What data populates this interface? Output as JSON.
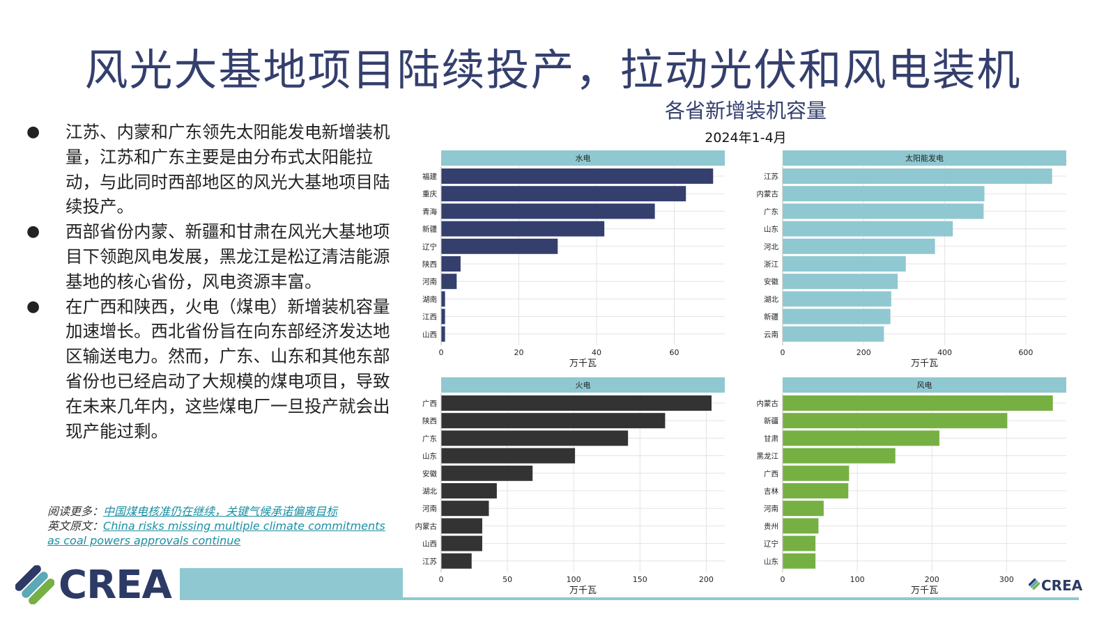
{
  "slide": {
    "title": "风光大基地项目陆续投产，拉动光伏和风电装机",
    "bullets": [
      "江苏、内蒙和广东领先太阳能发电新增装机量，江苏和广东主要是由分布式太阳能拉动，与此同时西部地区的风光大基地项目陆续投产。",
      "西部省份内蒙、新疆和甘肃在风光大基地项目下领跑风电发展，黑龙江是松辽清洁能源基地的核心省份，风电资源丰富。",
      "在广西和陕西，火电（煤电）新增装机容量加速增长。西北省份旨在向东部经济发达地区输送电力。然而，广东、山东和其他东部省份也已经启动了大规模的煤电项目，导致在未来几年内，这些煤电厂一旦投产就会出现产能过剩。"
    ],
    "bullet_symbol": "●",
    "read_more": {
      "label1": "阅读更多：",
      "link1": "中国煤电核准仍在继续，关键气候承诺偏离目标",
      "label2": "英文原文：",
      "link2": "China risks missing multiple climate commitments as coal powers approvals continue"
    },
    "logo": {
      "text": "CREA",
      "colors": [
        "#2d3a66",
        "#5aa9b5",
        "#76b043",
        "#8fc8d0"
      ]
    }
  },
  "chart_data": {
    "type": "bar",
    "title": "各省新增装机容量",
    "subtitle": "2024年1-4月",
    "orientation": "horizontal",
    "panels": [
      {
        "name": "水电",
        "color": "#343f6e",
        "xlabel": "万千瓦",
        "xlim": [
          0,
          73
        ],
        "ticks": [
          0,
          20,
          40,
          60
        ],
        "categories": [
          "福建",
          "重庆",
          "青海",
          "新疆",
          "辽宁",
          "陕西",
          "河南",
          "湖南",
          "江西",
          "山西"
        ],
        "values": [
          70,
          63,
          55,
          42,
          30,
          5,
          4,
          1,
          1,
          1
        ]
      },
      {
        "name": "太阳能发电",
        "color": "#8fc8d0",
        "xlabel": "万千瓦",
        "xlim": [
          0,
          700
        ],
        "ticks": [
          0,
          200,
          400,
          600
        ],
        "categories": [
          "江苏",
          "内蒙古",
          "广东",
          "山东",
          "河北",
          "浙江",
          "安徽",
          "湖北",
          "新疆",
          "云南"
        ],
        "values": [
          665,
          498,
          496,
          420,
          376,
          304,
          284,
          268,
          266,
          250
        ]
      },
      {
        "name": "火电",
        "color": "#333333",
        "xlabel": "万千瓦",
        "xlim": [
          0,
          214
        ],
        "ticks": [
          0,
          50,
          100,
          150,
          200
        ],
        "categories": [
          "广西",
          "陕西",
          "广东",
          "山东",
          "安徽",
          "湖北",
          "河南",
          "内蒙古",
          "山西",
          "江苏"
        ],
        "values": [
          204,
          169,
          141,
          101,
          69,
          42,
          36,
          31,
          31,
          23
        ]
      },
      {
        "name": "风电",
        "color": "#76b043",
        "xlabel": "万千瓦",
        "xlim": [
          0,
          380
        ],
        "ticks": [
          0,
          100,
          200,
          300
        ],
        "categories": [
          "内蒙古",
          "新疆",
          "甘肃",
          "黑龙江",
          "广西",
          "吉林",
          "河南",
          "贵州",
          "辽宁",
          "山东"
        ],
        "values": [
          362,
          301,
          210,
          151,
          89,
          88,
          55,
          48,
          44,
          44
        ]
      }
    ],
    "strip_color": "#8fc8d0",
    "grid": true
  }
}
